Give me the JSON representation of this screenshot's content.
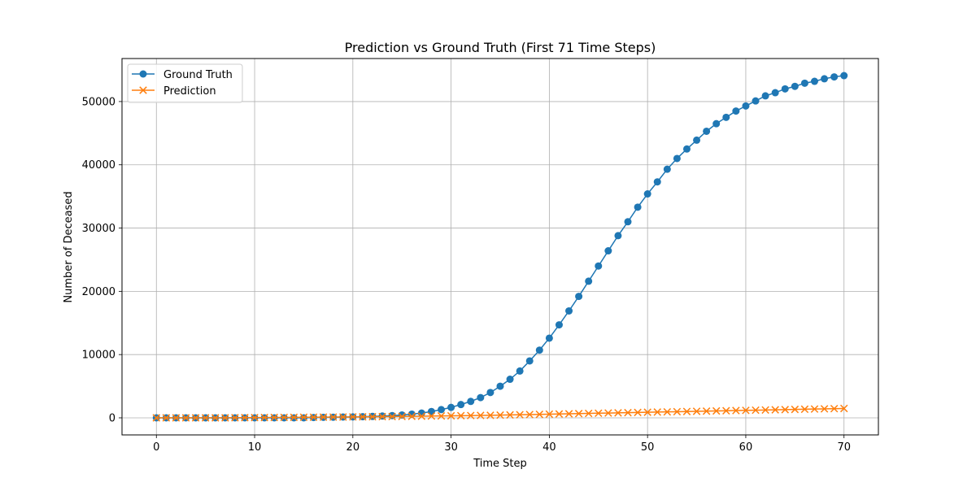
{
  "chart_data": {
    "type": "line",
    "title": "Prediction vs Ground Truth (First 71 Time Steps)",
    "xlabel": "Time Step",
    "ylabel": "Number of Deceased",
    "xlim": [
      -3.5,
      73.5
    ],
    "ylim": [
      -2700,
      56800
    ],
    "xticks": [
      0,
      10,
      20,
      30,
      40,
      50,
      60,
      70
    ],
    "yticks": [
      0,
      10000,
      20000,
      30000,
      40000,
      50000
    ],
    "grid": true,
    "legend_position": "upper left",
    "x": [
      0,
      1,
      2,
      3,
      4,
      5,
      6,
      7,
      8,
      9,
      10,
      11,
      12,
      13,
      14,
      15,
      16,
      17,
      18,
      19,
      20,
      21,
      22,
      23,
      24,
      25,
      26,
      27,
      28,
      29,
      30,
      31,
      32,
      33,
      34,
      35,
      36,
      37,
      38,
      39,
      40,
      41,
      42,
      43,
      44,
      45,
      46,
      47,
      48,
      49,
      50,
      51,
      52,
      53,
      54,
      55,
      56,
      57,
      58,
      59,
      60,
      61,
      62,
      63,
      64,
      65,
      66,
      67,
      68,
      69,
      70
    ],
    "series": [
      {
        "name": "Ground Truth",
        "color": "#1f77b4",
        "marker": "circle",
        "values": [
          0,
          0,
          0,
          0,
          0,
          0,
          0,
          0,
          0,
          0,
          0,
          0,
          0,
          0,
          0,
          0,
          50,
          80,
          100,
          130,
          150,
          180,
          220,
          280,
          360,
          450,
          580,
          750,
          1000,
          1300,
          1650,
          2100,
          2600,
          3200,
          4000,
          5000,
          6100,
          7400,
          9000,
          10700,
          12600,
          14700,
          16900,
          19200,
          21600,
          24000,
          26400,
          28800,
          31000,
          33300,
          35400,
          37300,
          39300,
          41000,
          42500,
          43900,
          45300,
          46500,
          47500,
          48500,
          49300,
          50100,
          50900,
          51400,
          52000,
          52400,
          52900,
          53200,
          53600,
          53900,
          54100
        ]
      },
      {
        "name": "Prediction",
        "color": "#ff7f0e",
        "marker": "x",
        "values": [
          0,
          0,
          0,
          0,
          0,
          0,
          0,
          0,
          20,
          30,
          40,
          50,
          60,
          70,
          80,
          90,
          100,
          110,
          120,
          130,
          150,
          160,
          170,
          190,
          200,
          220,
          240,
          260,
          280,
          300,
          320,
          340,
          360,
          380,
          400,
          430,
          460,
          490,
          520,
          550,
          580,
          610,
          640,
          670,
          700,
          730,
          760,
          790,
          820,
          850,
          880,
          910,
          940,
          970,
          1000,
          1030,
          1060,
          1090,
          1120,
          1150,
          1180,
          1210,
          1240,
          1270,
          1300,
          1330,
          1360,
          1390,
          1420,
          1450,
          1480
        ]
      }
    ]
  }
}
